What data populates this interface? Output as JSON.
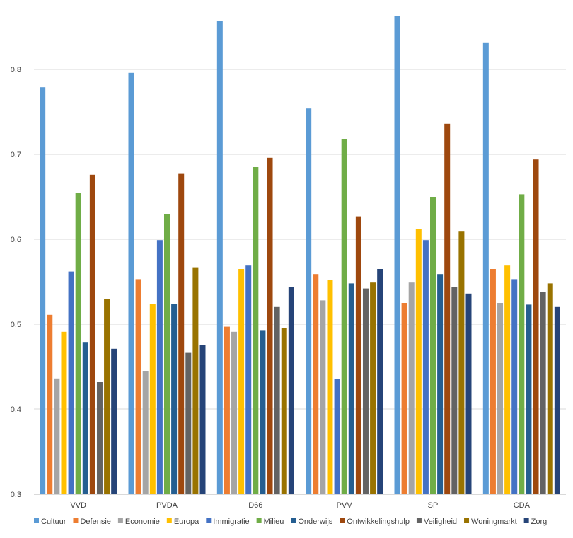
{
  "chart_data": {
    "type": "bar",
    "categories": [
      "VVD",
      "PVDA",
      "D66",
      "PVV",
      "SP",
      "CDA"
    ],
    "ylim": [
      0.3,
      0.87
    ],
    "yticks": [
      "0.3",
      "0.4",
      "0.5",
      "0.6",
      "0.7",
      "0.8"
    ],
    "grid": true,
    "legend_position": "bottom",
    "series": [
      {
        "name": "Cultuur",
        "color": "#5B9BD5",
        "values": [
          0.779,
          0.796,
          0.857,
          0.754,
          0.863,
          0.831
        ]
      },
      {
        "name": "Defensie",
        "color": "#ED7D31",
        "values": [
          0.511,
          0.553,
          0.497,
          0.559,
          0.525,
          0.565
        ]
      },
      {
        "name": "Economie",
        "color": "#A5A5A5",
        "values": [
          0.436,
          0.445,
          0.491,
          0.528,
          0.549,
          0.525
        ]
      },
      {
        "name": "Europa",
        "color": "#FFC000",
        "values": [
          0.491,
          0.524,
          0.565,
          0.552,
          0.612,
          0.569
        ]
      },
      {
        "name": "Immigratie",
        "color": "#4472C4",
        "values": [
          0.562,
          0.599,
          0.569,
          0.435,
          0.599,
          0.553
        ]
      },
      {
        "name": "Milieu",
        "color": "#70AD47",
        "values": [
          0.655,
          0.63,
          0.685,
          0.718,
          0.65,
          0.653
        ]
      },
      {
        "name": "Onderwijs",
        "color": "#255E91",
        "values": [
          0.479,
          0.524,
          0.493,
          0.548,
          0.559,
          0.523
        ]
      },
      {
        "name": "Ontwikkelingshulp",
        "color": "#9E480E",
        "values": [
          0.676,
          0.677,
          0.696,
          0.627,
          0.736,
          0.694
        ]
      },
      {
        "name": "Veiligheid",
        "color": "#636363",
        "values": [
          0.432,
          0.467,
          0.521,
          0.542,
          0.544,
          0.538
        ]
      },
      {
        "name": "Woningmarkt",
        "color": "#997300",
        "values": [
          0.53,
          0.567,
          0.495,
          0.549,
          0.609,
          0.548
        ]
      },
      {
        "name": "Zorg",
        "color": "#264478",
        "values": [
          0.471,
          0.475,
          0.544,
          0.565,
          0.536,
          0.521
        ]
      }
    ]
  }
}
